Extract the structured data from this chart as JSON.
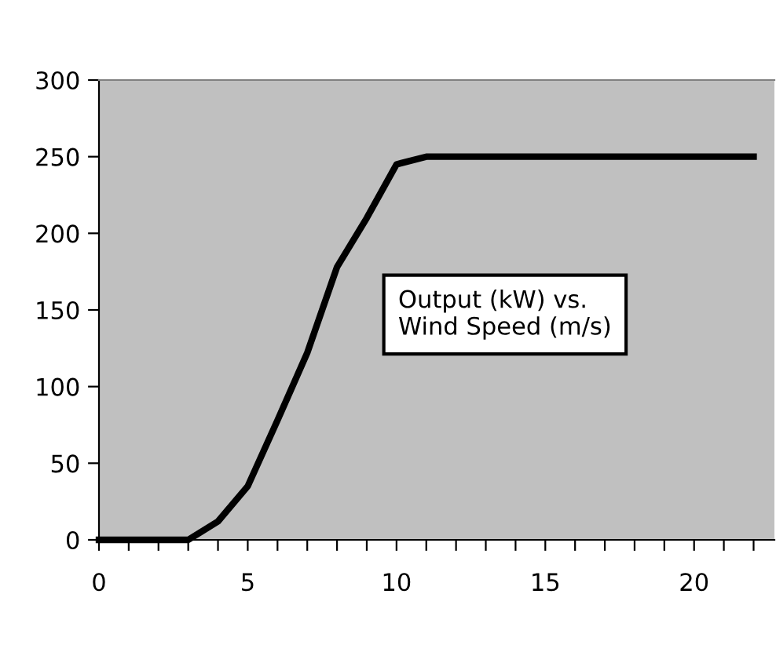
{
  "chart_data": {
    "type": "line",
    "x": [
      0,
      1,
      2,
      3,
      4,
      5,
      6,
      7,
      8,
      9,
      10,
      11,
      12,
      13,
      14,
      15,
      16,
      17,
      18,
      19,
      20,
      21,
      22
    ],
    "series": [
      {
        "color": "#000000",
        "values": [
          0,
          0,
          0,
          0,
          12,
          35,
          78,
          122,
          178,
          210,
          245,
          250,
          250,
          250,
          250,
          250,
          250,
          250,
          250,
          250,
          250,
          250,
          250
        ]
      }
    ],
    "xlim": [
      0,
      22.7
    ],
    "ylim": [
      0,
      300
    ],
    "xticks": [
      0,
      {
        "value": 1,
        "label": null
      },
      {
        "value": 2,
        "label": null
      },
      {
        "value": 3,
        "label": null
      },
      {
        "value": 4,
        "label": null
      },
      5,
      {
        "value": 6,
        "label": null
      },
      {
        "value": 7,
        "label": null
      },
      {
        "value": 8,
        "label": null
      },
      {
        "value": 9,
        "label": null
      },
      10,
      {
        "value": 11,
        "label": null
      },
      {
        "value": 12,
        "label": null
      },
      {
        "value": 13,
        "label": null
      },
      {
        "value": 14,
        "label": null
      },
      15,
      {
        "value": 16,
        "label": null
      },
      {
        "value": 17,
        "label": null
      },
      {
        "value": 18,
        "label": null
      },
      {
        "value": 19,
        "label": null
      },
      20,
      {
        "value": 21,
        "label": null
      },
      {
        "value": 22,
        "label": null
      }
    ],
    "yticks": [
      0,
      50,
      100,
      150,
      200,
      250,
      300
    ],
    "annotations": [
      "Output (kW) vs.\nWind Speed (m/s)"
    ],
    "grid": false,
    "legend": false,
    "marker": "none",
    "line_style": "solid"
  }
}
